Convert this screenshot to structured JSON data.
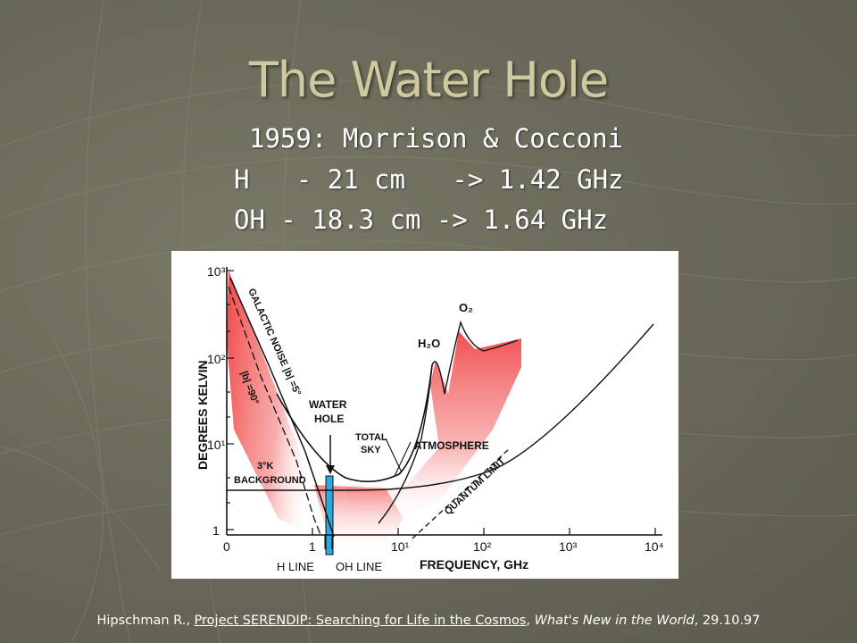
{
  "title": "The Water Hole",
  "lines": {
    "line1": "1959: Morrison & Cocconi",
    "line2": "H   - 21 cm   -> 1.42 GHz",
    "line3": "OH - 18.3 cm -> 1.64 GHz"
  },
  "figure": {
    "ylabel": "DEGREES KELVIN",
    "xlabel": "FREQUENCY, GHz",
    "y_ticks": [
      "10³",
      "10²",
      "10¹",
      "1"
    ],
    "x_ticks": [
      "0",
      "1",
      "10¹",
      "10²",
      "10³",
      "10⁴"
    ],
    "labels": {
      "galactic_noise": "GALACTIC NOISE |b| =5°",
      "b90": "|b| =90°",
      "water_hole_1": "WATER",
      "water_hole_2": "HOLE",
      "total_sky_1": "TOTAL",
      "total_sky_2": "SKY",
      "atmosphere": "ATMOSPHERE",
      "h2o": "H₂O",
      "o2": "O₂",
      "background_1": "3°K",
      "background_2": "BACKGROUND",
      "quantum_limit": "QUANTUM LIMIT",
      "h_line": "H LINE",
      "oh_line": "OH LINE"
    },
    "colors": {
      "shading": "#f04848",
      "water_hole_band": "#29a9e0",
      "ink": "#111111"
    }
  },
  "citation": {
    "author": "Hipschman R., ",
    "work": "Project SERENDIP: Searching for Life in the Cosmos",
    "sep": ", ",
    "publication": "What's New in the World",
    "date": ", 29.10.97"
  }
}
